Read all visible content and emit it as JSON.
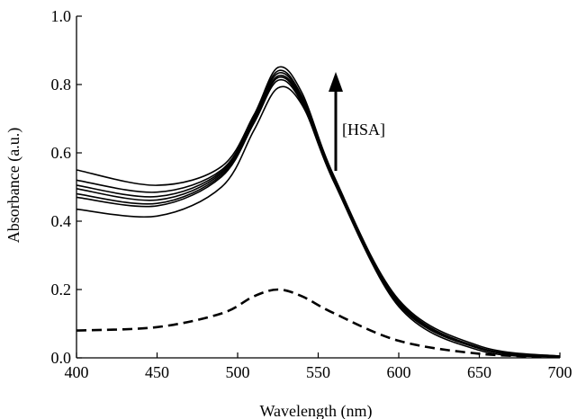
{
  "chart_data": {
    "type": "line",
    "xlabel": "Wavelength (nm)",
    "ylabel": "Absorbance (a.u.)",
    "xlim": [
      400,
      700
    ],
    "ylim": [
      0.0,
      1.0
    ],
    "x_ticks": [
      "400",
      "450",
      "500",
      "550",
      "600",
      "650",
      "700"
    ],
    "y_ticks": [
      "0.0",
      "0.2",
      "0.4",
      "0.6",
      "0.8",
      "1.0"
    ],
    "x_tick_values": [
      400,
      450,
      500,
      550,
      600,
      650,
      700
    ],
    "y_tick_values": [
      0.0,
      0.2,
      0.4,
      0.6,
      0.8,
      1.0
    ],
    "grid": false,
    "annotation": {
      "text": "[HSA]",
      "arrow": "up"
    },
    "series": [
      {
        "style": "solid",
        "x": [
          400,
          450,
          490,
          510,
          525,
          540,
          560,
          600,
          650,
          700
        ],
        "y": [
          0.55,
          0.505,
          0.56,
          0.71,
          0.85,
          0.775,
          0.53,
          0.17,
          0.035,
          0.005
        ]
      },
      {
        "style": "solid",
        "x": [
          400,
          450,
          490,
          510,
          525,
          540,
          560,
          600,
          650,
          700
        ],
        "y": [
          0.52,
          0.485,
          0.55,
          0.705,
          0.84,
          0.765,
          0.525,
          0.165,
          0.03,
          0.005
        ]
      },
      {
        "style": "solid",
        "x": [
          400,
          450,
          490,
          510,
          525,
          540,
          560,
          600,
          650,
          700
        ],
        "y": [
          0.505,
          0.472,
          0.545,
          0.7,
          0.833,
          0.76,
          0.52,
          0.162,
          0.03,
          0.004
        ]
      },
      {
        "style": "solid",
        "x": [
          400,
          450,
          490,
          510,
          525,
          540,
          560,
          600,
          650,
          700
        ],
        "y": [
          0.495,
          0.462,
          0.54,
          0.695,
          0.825,
          0.755,
          0.518,
          0.16,
          0.028,
          0.004
        ]
      },
      {
        "style": "solid",
        "x": [
          400,
          450,
          490,
          510,
          525,
          540,
          560,
          600,
          650,
          700
        ],
        "y": [
          0.48,
          0.452,
          0.535,
          0.69,
          0.82,
          0.75,
          0.515,
          0.158,
          0.028,
          0.004
        ]
      },
      {
        "style": "solid",
        "x": [
          400,
          450,
          490,
          510,
          525,
          540,
          560,
          600,
          650,
          700
        ],
        "y": [
          0.47,
          0.445,
          0.53,
          0.686,
          0.812,
          0.745,
          0.512,
          0.155,
          0.027,
          0.004
        ]
      },
      {
        "style": "solid",
        "x": [
          400,
          450,
          490,
          510,
          525,
          540,
          560,
          600,
          650,
          700
        ],
        "y": [
          0.435,
          0.415,
          0.5,
          0.665,
          0.79,
          0.74,
          0.52,
          0.15,
          0.022,
          0.003
        ]
      },
      {
        "style": "dashed",
        "x": [
          400,
          450,
          490,
          510,
          525,
          540,
          560,
          600,
          650,
          700
        ],
        "y": [
          0.08,
          0.09,
          0.13,
          0.18,
          0.2,
          0.18,
          0.13,
          0.05,
          0.012,
          0.002
        ]
      }
    ]
  }
}
